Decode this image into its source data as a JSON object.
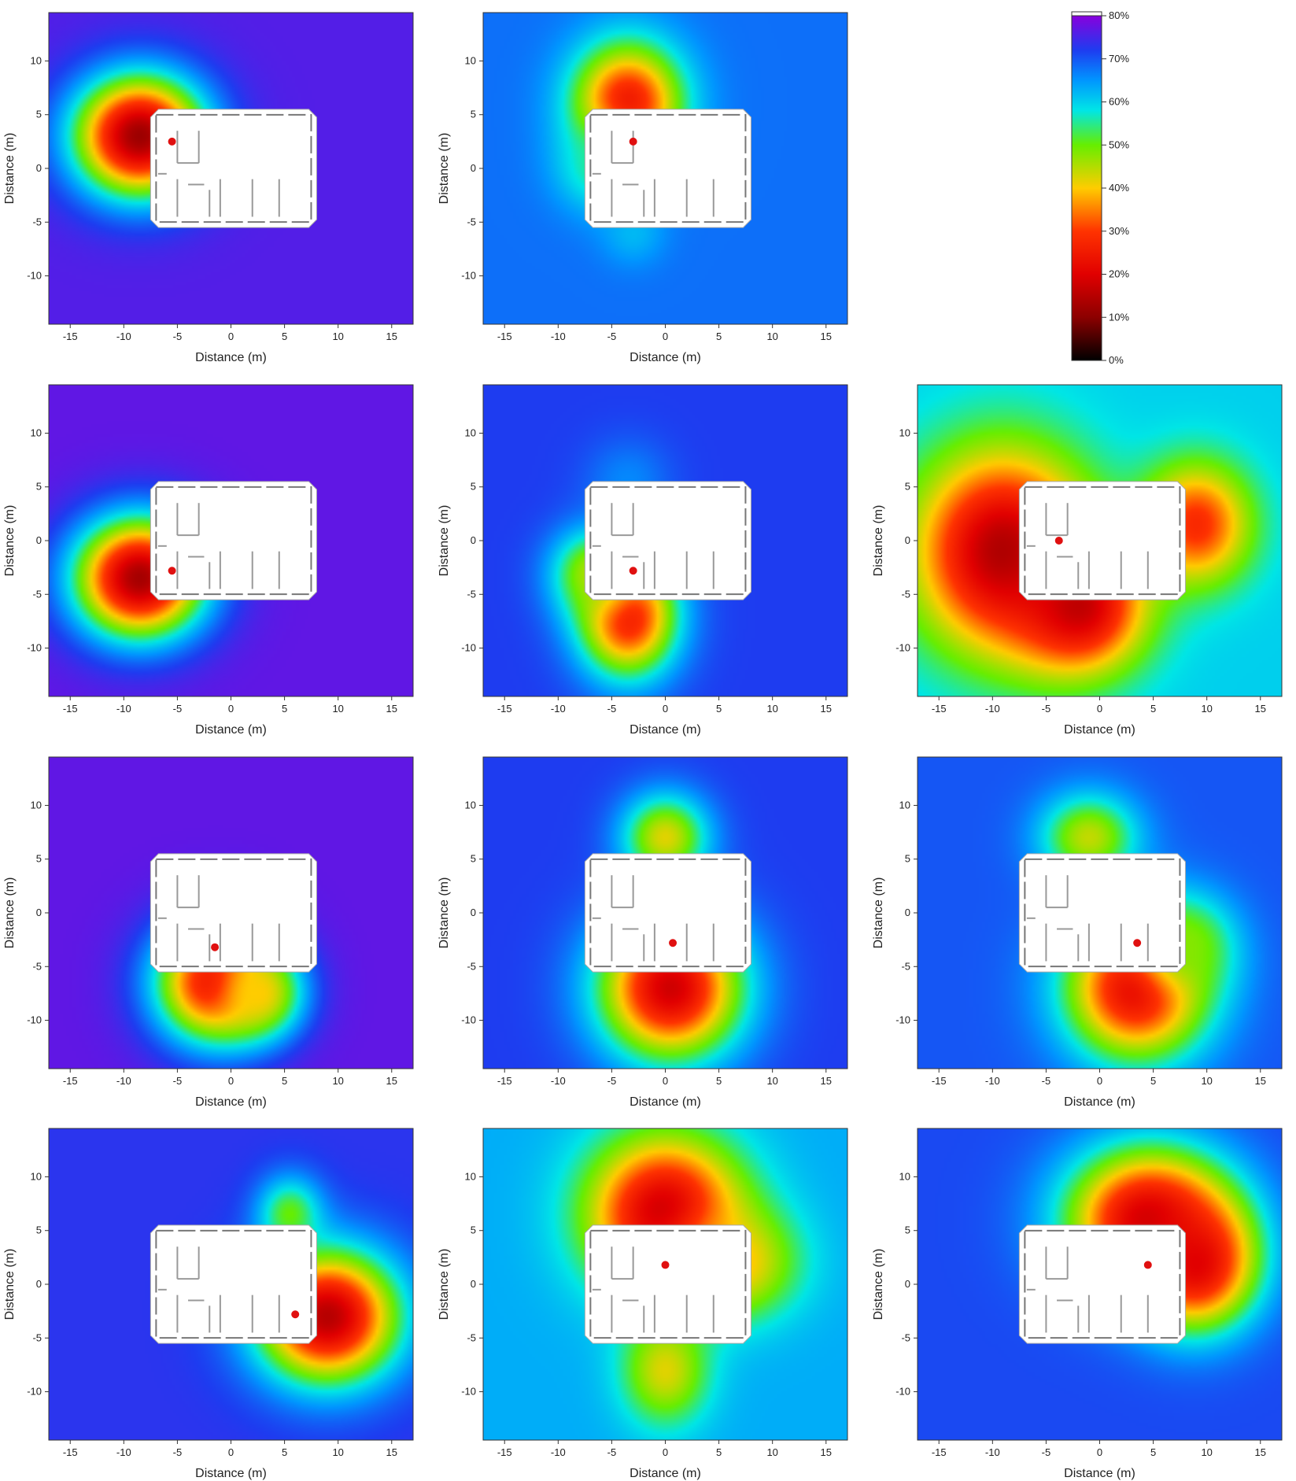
{
  "chart_data": {
    "type": "heatmap",
    "grid": "3 columns x 4 rows of contour-map panels",
    "colorbar": {
      "range": [
        0,
        80
      ],
      "ticks": [
        "0%",
        "10%",
        "20%",
        "30%",
        "40%",
        "50%",
        "60%",
        "70%",
        "80%"
      ],
      "tick_values": [
        0,
        10,
        20,
        30,
        40,
        50,
        60,
        70,
        80
      ],
      "stops": [
        {
          "v": 0,
          "color": "#000000"
        },
        {
          "v": 10,
          "color": "#8c0000"
        },
        {
          "v": 20,
          "color": "#e10000"
        },
        {
          "v": 30,
          "color": "#ff3300"
        },
        {
          "v": 40,
          "color": "#ffcc00"
        },
        {
          "v": 50,
          "color": "#66ee00"
        },
        {
          "v": 58,
          "color": "#00e6e6"
        },
        {
          "v": 65,
          "color": "#0096ff"
        },
        {
          "v": 72,
          "color": "#1e3cf0"
        },
        {
          "v": 80,
          "color": "#8800dd"
        }
      ]
    },
    "x_ticks": [
      -15,
      -10,
      -5,
      0,
      5,
      10,
      15
    ],
    "y_ticks": [
      -10,
      -5,
      0,
      5,
      10
    ],
    "xlim": [
      -17,
      17
    ],
    "ylim": [
      -14.5,
      14.5
    ],
    "xlabel": "Distance (m)",
    "ylabel": "Distance (m)",
    "building": {
      "x": [
        -7.5,
        8
      ],
      "y": [
        -5.5,
        5.5
      ]
    },
    "panels": [
      {
        "row": 0,
        "col": 0,
        "sensor": [
          -5.5,
          2.5
        ],
        "background": 76,
        "peaks": [
          {
            "x": -8.5,
            "y": 3,
            "value": 12,
            "rx": 6,
            "ry": 5.5
          }
        ]
      },
      {
        "row": 0,
        "col": 1,
        "sensor": [
          -3,
          2.5
        ],
        "background": 68,
        "peaks": [
          {
            "x": -3.5,
            "y": 6,
            "value": 24,
            "rx": 5,
            "ry": 5.5
          },
          {
            "x": -6,
            "y": 0,
            "value": 55,
            "rx": 4,
            "ry": 4
          },
          {
            "x": -3,
            "y": -6,
            "value": 62,
            "rx": 3,
            "ry": 3
          }
        ]
      },
      {
        "row": 1,
        "col": 0,
        "sensor": [
          -5.5,
          -2.8
        ],
        "background": 77,
        "peaks": [
          {
            "x": -8.5,
            "y": -3.5,
            "value": 13,
            "rx": 6,
            "ry": 5.5
          }
        ]
      },
      {
        "row": 1,
        "col": 1,
        "sensor": [
          -3,
          -2.8
        ],
        "background": 72,
        "peaks": [
          {
            "x": -3.5,
            "y": -7,
            "value": 24,
            "rx": 4.5,
            "ry": 5.5
          },
          {
            "x": -6.5,
            "y": -3,
            "value": 45,
            "rx": 4,
            "ry": 4
          },
          {
            "x": -3.5,
            "y": 5.5,
            "value": 66,
            "rx": 4,
            "ry": 4
          }
        ]
      },
      {
        "row": 1,
        "col": 2,
        "sensor": [
          -3.8,
          0
        ],
        "background": 60,
        "peaks": [
          {
            "x": -9,
            "y": -1,
            "value": 14,
            "rx": 8,
            "ry": 9
          },
          {
            "x": -2,
            "y": -6,
            "value": 16,
            "rx": 6,
            "ry": 6
          },
          {
            "x": 9,
            "y": 1.5,
            "value": 28,
            "rx": 5,
            "ry": 5.5
          }
        ]
      },
      {
        "row": 2,
        "col": 0,
        "sensor": [
          -1.5,
          -3.2
        ],
        "background": 77,
        "peaks": [
          {
            "x": -1.5,
            "y": -6.5,
            "value": 22,
            "rx": 5.5,
            "ry": 5.5
          },
          {
            "x": 2.5,
            "y": -7.5,
            "value": 40,
            "rx": 4,
            "ry": 4
          }
        ]
      },
      {
        "row": 2,
        "col": 1,
        "sensor": [
          0.7,
          -2.8
        ],
        "background": 72,
        "peaks": [
          {
            "x": 0.5,
            "y": -7,
            "value": 18,
            "rx": 6.5,
            "ry": 6.5
          },
          {
            "x": 0,
            "y": 7,
            "value": 42,
            "rx": 4,
            "ry": 4
          }
        ]
      },
      {
        "row": 2,
        "col": 2,
        "sensor": [
          3.5,
          -2.8
        ],
        "background": 70,
        "peaks": [
          {
            "x": 3.5,
            "y": -7,
            "value": 20,
            "rx": 6.5,
            "ry": 6.5
          },
          {
            "x": -1,
            "y": 7,
            "value": 44,
            "rx": 4.5,
            "ry": 4
          },
          {
            "x": 8,
            "y": -3,
            "value": 48,
            "rx": 4.5,
            "ry": 4.5
          }
        ]
      },
      {
        "row": 3,
        "col": 0,
        "sensor": [
          6,
          -2.8
        ],
        "background": 73,
        "peaks": [
          {
            "x": 9,
            "y": -3,
            "value": 15,
            "rx": 6.5,
            "ry": 6
          },
          {
            "x": 5.5,
            "y": 6.5,
            "value": 50,
            "rx": 3,
            "ry": 3.5
          }
        ]
      },
      {
        "row": 3,
        "col": 1,
        "sensor": [
          0,
          1.8
        ],
        "background": 63,
        "peaks": [
          {
            "x": 0,
            "y": 6.5,
            "value": 16,
            "rx": 7,
            "ry": 7
          },
          {
            "x": 6,
            "y": 2,
            "value": 38,
            "rx": 6,
            "ry": 5
          },
          {
            "x": 0,
            "y": -8,
            "value": 42,
            "rx": 4,
            "ry": 5
          }
        ]
      },
      {
        "row": 3,
        "col": 2,
        "sensor": [
          4.5,
          1.8
        ],
        "background": 71,
        "peaks": [
          {
            "x": 4.5,
            "y": 6,
            "value": 18,
            "rx": 7.5,
            "ry": 6.5
          },
          {
            "x": 9,
            "y": 2,
            "value": 20,
            "rx": 5.5,
            "ry": 6
          }
        ]
      }
    ]
  }
}
